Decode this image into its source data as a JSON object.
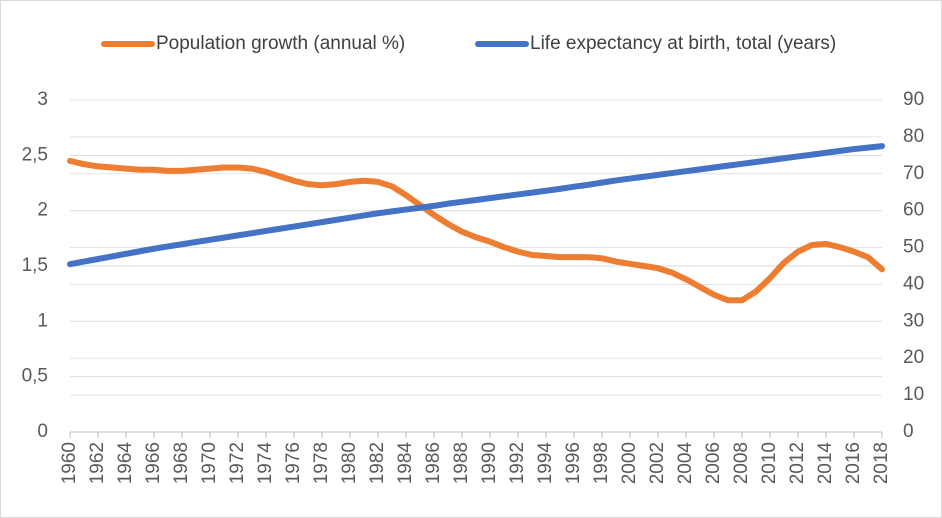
{
  "chart_data": {
    "type": "line",
    "legend": "top",
    "grid": true,
    "x": [
      1960,
      1961,
      1962,
      1963,
      1964,
      1965,
      1966,
      1967,
      1968,
      1969,
      1970,
      1971,
      1972,
      1973,
      1974,
      1975,
      1976,
      1977,
      1978,
      1979,
      1980,
      1981,
      1982,
      1983,
      1984,
      1985,
      1986,
      1987,
      1988,
      1989,
      1990,
      1991,
      1992,
      1993,
      1994,
      1995,
      1996,
      1997,
      1998,
      1999,
      2000,
      2001,
      2002,
      2003,
      2004,
      2005,
      2006,
      2007,
      2008,
      2009,
      2010,
      2011,
      2012,
      2013,
      2014,
      2015,
      2016,
      2017,
      2018
    ],
    "xlim": [
      1960,
      2018
    ],
    "xticks": [
      1960,
      1962,
      1964,
      1966,
      1968,
      1970,
      1972,
      1974,
      1976,
      1978,
      1980,
      1982,
      1984,
      1986,
      1988,
      1990,
      1992,
      1994,
      1996,
      1998,
      2000,
      2002,
      2004,
      2006,
      2008,
      2010,
      2012,
      2014,
      2016,
      2018
    ],
    "ylim": [
      0,
      3
    ],
    "yticks": [
      0,
      {
        "value": 0.5,
        "label": "0,5"
      },
      1,
      {
        "value": 1.5,
        "label": "1,5"
      },
      2,
      {
        "value": 2.5,
        "label": "2,5"
      },
      3
    ],
    "y2lim": [
      0,
      90
    ],
    "y2ticks": [
      0,
      10,
      20,
      30,
      40,
      50,
      60,
      70,
      80,
      90
    ],
    "series": [
      {
        "name": "Population growth (annual %)",
        "color": "#ed7d31",
        "values": [
          2.45,
          2.42,
          2.4,
          2.39,
          2.38,
          2.37,
          2.37,
          2.36,
          2.36,
          2.37,
          2.38,
          2.39,
          2.39,
          2.38,
          2.35,
          2.31,
          2.27,
          2.24,
          2.23,
          2.24,
          2.26,
          2.27,
          2.26,
          2.22,
          2.14,
          2.05,
          1.96,
          1.88,
          1.81,
          1.76,
          1.72,
          1.67,
          1.63,
          1.6,
          1.59,
          1.58,
          1.58,
          1.58,
          1.57,
          1.54,
          1.52,
          1.5,
          1.48,
          1.44,
          1.38,
          1.31,
          1.24,
          1.19,
          1.19,
          1.27,
          1.39,
          1.53,
          1.63,
          1.69,
          1.7,
          1.67,
          1.63,
          1.58,
          1.47
        ]
      },
      {
        "name": "Life expectancy at birth, total (years)",
        "color": "#4472c4",
        "axis": "y2",
        "values": [
          45.5,
          46.2,
          46.9,
          47.6,
          48.3,
          49.0,
          49.7,
          50.3,
          50.9,
          51.5,
          52.1,
          52.7,
          53.3,
          53.9,
          54.5,
          55.1,
          55.7,
          56.3,
          56.9,
          57.5,
          58.1,
          58.7,
          59.3,
          59.8,
          60.3,
          60.8,
          61.3,
          61.9,
          62.4,
          62.9,
          63.4,
          63.9,
          64.4,
          64.9,
          65.4,
          65.9,
          66.5,
          67.0,
          67.6,
          68.2,
          68.7,
          69.2,
          69.7,
          70.2,
          70.7,
          71.2,
          71.7,
          72.2,
          72.7,
          73.2,
          73.7,
          74.2,
          74.7,
          75.2,
          75.7,
          76.2,
          76.7,
          77.1,
          77.5
        ]
      }
    ]
  }
}
